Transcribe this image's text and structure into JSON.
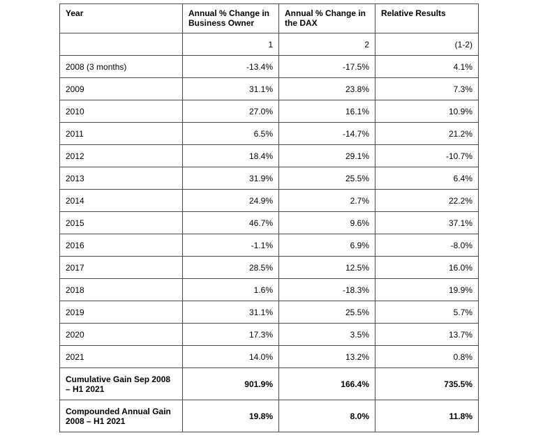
{
  "table": {
    "headers": [
      "Year",
      "Annual % Change in Business Owner",
      "Annual % Change in the DAX",
      "Relative Results"
    ],
    "column_numbers": [
      "",
      "1",
      "2",
      "(1-2)"
    ],
    "rows": [
      {
        "year": "2008 (3 months)",
        "business_owner": "-13.4%",
        "dax": "-17.5%",
        "relative": "4.1%"
      },
      {
        "year": "2009",
        "business_owner": "31.1%",
        "dax": "23.8%",
        "relative": "7.3%"
      },
      {
        "year": "2010",
        "business_owner": "27.0%",
        "dax": "16.1%",
        "relative": "10.9%"
      },
      {
        "year": "2011",
        "business_owner": "6.5%",
        "dax": "-14.7%",
        "relative": "21.2%"
      },
      {
        "year": "2012",
        "business_owner": "18.4%",
        "dax": "29.1%",
        "relative": "-10.7%"
      },
      {
        "year": "2013",
        "business_owner": "31.9%",
        "dax": "25.5%",
        "relative": "6.4%"
      },
      {
        "year": "2014",
        "business_owner": "24.9%",
        "dax": "2.7%",
        "relative": "22.2%"
      },
      {
        "year": "2015",
        "business_owner": "46.7%",
        "dax": "9.6%",
        "relative": "37.1%"
      },
      {
        "year": "2016",
        "business_owner": "-1.1%",
        "dax": "6.9%",
        "relative": "-8.0%"
      },
      {
        "year": "2017",
        "business_owner": "28.5%",
        "dax": "12.5%",
        "relative": "16.0%"
      },
      {
        "year": "2018",
        "business_owner": "1.6%",
        "dax": "-18.3%",
        "relative": "19.9%"
      },
      {
        "year": "2019",
        "business_owner": "31.1%",
        "dax": "25.5%",
        "relative": "5.7%"
      },
      {
        "year": "2020",
        "business_owner": "17.3%",
        "dax": "3.5%",
        "relative": "13.7%"
      },
      {
        "year": "2021",
        "business_owner": "14.0%",
        "dax": "13.2%",
        "relative": "0.8%"
      }
    ],
    "summary_rows": [
      {
        "year": "Cumulative Gain Sep 2008 – H1 2021",
        "business_owner": "901.9%",
        "dax": "166.4%",
        "relative": "735.5%"
      },
      {
        "year": "Compounded Annual Gain 2008 – H1 2021",
        "business_owner": "19.8%",
        "dax": "8.0%",
        "relative": "11.8%"
      }
    ]
  },
  "chart_data": {
    "type": "table",
    "title": "",
    "columns": [
      "Year",
      "Annual % Change in Business Owner (1)",
      "Annual % Change in the DAX (2)",
      "Relative Results (1-2)"
    ],
    "rows": [
      [
        "2008 (3 months)",
        -13.4,
        -17.5,
        4.1
      ],
      [
        "2009",
        31.1,
        23.8,
        7.3
      ],
      [
        "2010",
        27.0,
        16.1,
        10.9
      ],
      [
        "2011",
        6.5,
        -14.7,
        21.2
      ],
      [
        "2012",
        18.4,
        29.1,
        -10.7
      ],
      [
        "2013",
        31.9,
        25.5,
        6.4
      ],
      [
        "2014",
        24.9,
        2.7,
        22.2
      ],
      [
        "2015",
        46.7,
        9.6,
        37.1
      ],
      [
        "2016",
        -1.1,
        6.9,
        -8.0
      ],
      [
        "2017",
        28.5,
        12.5,
        16.0
      ],
      [
        "2018",
        1.6,
        -18.3,
        19.9
      ],
      [
        "2019",
        31.1,
        25.5,
        5.7
      ],
      [
        "2020",
        17.3,
        3.5,
        13.7
      ],
      [
        "2021",
        14.0,
        13.2,
        0.8
      ],
      [
        "Cumulative Gain Sep 2008 – H1 2021",
        901.9,
        166.4,
        735.5
      ],
      [
        "Compounded Annual Gain 2008 – H1 2021",
        19.8,
        8.0,
        11.8
      ]
    ]
  }
}
